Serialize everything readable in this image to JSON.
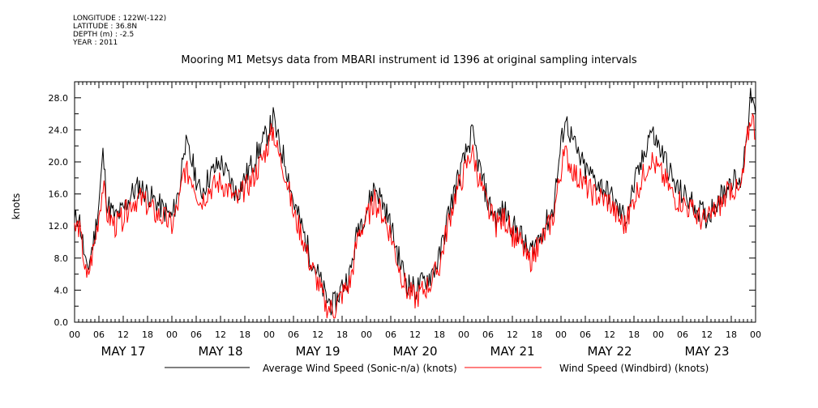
{
  "meta": {
    "longitude": "LONGITUDE : 122W(-122)",
    "latitude": "LATITUDE : 36.8N",
    "depth": "DEPTH (m) : -2.5",
    "year": "YEAR : 2011"
  },
  "chart_data": {
    "type": "line",
    "title": "Mooring M1 Metsys data from MBARI instrument id 1396 at original sampling intervals",
    "ylabel": "knots",
    "ylim": [
      0,
      30
    ],
    "y_ticks": [
      "0.0",
      "4.0",
      "8.0",
      "12.0",
      "16.0",
      "20.0",
      "24.0",
      "28.0"
    ],
    "x_unit": "hours since May 17 00:00",
    "xlim": [
      0,
      168
    ],
    "x_hour_ticks": [
      "00",
      "06",
      "12",
      "18",
      "00",
      "06",
      "12",
      "18",
      "00",
      "06",
      "12",
      "18",
      "00",
      "06",
      "12",
      "18",
      "00",
      "06",
      "12",
      "18",
      "00",
      "06",
      "12",
      "18",
      "00",
      "06",
      "12",
      "18",
      "00"
    ],
    "x_day_labels": [
      "MAY 17",
      "MAY 18",
      "MAY 19",
      "MAY 20",
      "MAY 21",
      "MAY 22",
      "MAY 23"
    ],
    "colors": {
      "sonic": "#000000",
      "windbird": "#ff0000"
    },
    "series": [
      {
        "name": "Average Wind Speed (Sonic-n/a) (knots)",
        "color": "#000000",
        "x": [
          0,
          1,
          2,
          3,
          4,
          5,
          6,
          7,
          8,
          10,
          12,
          14,
          16,
          18,
          20,
          22,
          24,
          26,
          27,
          29,
          31,
          33,
          36,
          38,
          40,
          42,
          44,
          46,
          48,
          49,
          50,
          52,
          54,
          56,
          58,
          60,
          62,
          64,
          66,
          68,
          70,
          72,
          74,
          76,
          78,
          80,
          82,
          84,
          86,
          88,
          90,
          92,
          94,
          96,
          98,
          100,
          102,
          104,
          106,
          108,
          110,
          112,
          114,
          116,
          118,
          120,
          121,
          122,
          124,
          126,
          128,
          130,
          132,
          134,
          136,
          138,
          140,
          142,
          144,
          146,
          148,
          150,
          152,
          154,
          156,
          158,
          160,
          162,
          164,
          165,
          166,
          167,
          168
        ],
        "values": [
          12.5,
          13.5,
          10.0,
          6.0,
          8.5,
          11.0,
          15.0,
          21.0,
          15.0,
          13.0,
          14.0,
          16.0,
          17.0,
          16.0,
          15.0,
          14.0,
          13.0,
          17.0,
          22.5,
          20.0,
          16.0,
          18.0,
          20.0,
          18.0,
          16.0,
          18.0,
          20.0,
          22.0,
          24.0,
          25.5,
          23.0,
          20.0,
          15.0,
          12.0,
          8.5,
          6.0,
          3.0,
          2.0,
          4.5,
          6.0,
          12.0,
          14.0,
          17.0,
          15.0,
          12.0,
          8.0,
          5.0,
          4.0,
          5.0,
          6.0,
          8.0,
          13.0,
          17.0,
          20.0,
          23.5,
          19.0,
          15.0,
          13.0,
          14.0,
          12.0,
          11.0,
          8.5,
          10.0,
          12.0,
          14.0,
          22.0,
          25.5,
          24.0,
          21.0,
          19.0,
          18.0,
          17.0,
          16.0,
          14.0,
          13.0,
          17.0,
          20.0,
          24.0,
          22.0,
          20.0,
          17.0,
          16.0,
          15.0,
          14.0,
          13.0,
          15.0,
          16.0,
          18.0,
          17.0,
          20.0,
          25.0,
          28.5,
          25.0
        ]
      },
      {
        "name": "Wind Speed (Windbird) (knots)",
        "color": "#ff0000",
        "x": [
          0,
          1,
          2,
          3,
          4,
          5,
          6,
          7,
          8,
          10,
          12,
          14,
          16,
          18,
          20,
          22,
          24,
          26,
          27,
          29,
          31,
          33,
          36,
          38,
          40,
          42,
          44,
          46,
          48,
          49,
          50,
          52,
          54,
          56,
          58,
          60,
          62,
          64,
          66,
          68,
          70,
          72,
          74,
          76,
          78,
          80,
          82,
          84,
          86,
          88,
          90,
          92,
          94,
          96,
          98,
          100,
          102,
          104,
          106,
          108,
          110,
          112,
          114,
          116,
          118,
          120,
          121,
          122,
          124,
          126,
          128,
          130,
          132,
          134,
          136,
          138,
          140,
          142,
          144,
          146,
          148,
          150,
          152,
          154,
          156,
          158,
          160,
          162,
          164,
          165,
          166,
          167,
          168
        ],
        "values": [
          11.5,
          12.0,
          9.0,
          5.0,
          7.5,
          10.0,
          13.5,
          17.0,
          13.5,
          12.0,
          13.0,
          15.0,
          15.5,
          14.5,
          13.5,
          13.0,
          12.0,
          15.5,
          19.0,
          18.0,
          15.0,
          16.5,
          17.5,
          16.5,
          15.0,
          16.5,
          18.0,
          20.0,
          22.5,
          24.0,
          21.5,
          18.5,
          13.5,
          11.0,
          7.5,
          5.0,
          2.0,
          1.5,
          3.5,
          5.0,
          11.0,
          13.0,
          15.0,
          13.5,
          11.0,
          7.0,
          4.0,
          3.0,
          4.0,
          5.0,
          7.0,
          12.0,
          16.0,
          18.5,
          21.5,
          17.5,
          14.0,
          12.0,
          13.0,
          11.0,
          10.0,
          7.5,
          9.0,
          11.0,
          13.0,
          19.0,
          21.0,
          20.0,
          18.0,
          17.0,
          16.0,
          15.5,
          15.0,
          13.0,
          12.0,
          15.5,
          18.0,
          20.5,
          19.0,
          17.5,
          15.5,
          15.0,
          14.0,
          13.0,
          12.5,
          14.0,
          15.0,
          17.0,
          16.0,
          18.5,
          23.0,
          26.0,
          23.5
        ]
      }
    ]
  },
  "legend": {
    "sonic_label": "Average Wind Speed (Sonic-n/a) (knots)",
    "windbird_label": "Wind Speed (Windbird) (knots)"
  }
}
